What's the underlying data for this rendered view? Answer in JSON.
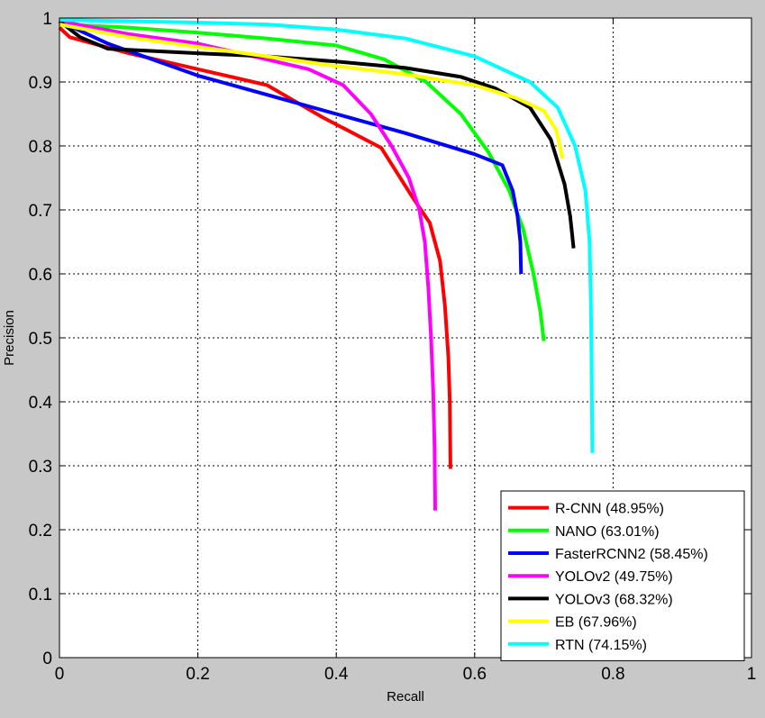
{
  "chart_data": {
    "type": "line",
    "title": "",
    "xlabel": "Recall",
    "ylabel": "Precision",
    "xlim": [
      0,
      1
    ],
    "ylim": [
      0,
      1
    ],
    "x_ticks": [
      "0",
      "0.2",
      "0.4",
      "0.6",
      "0.8",
      "1"
    ],
    "y_ticks": [
      "0",
      "0.1",
      "0.2",
      "0.3",
      "0.4",
      "0.5",
      "0.6",
      "0.7",
      "0.8",
      "0.9",
      "1"
    ],
    "grid": true,
    "legend_position": "bottom-right",
    "series": [
      {
        "name": "R-CNN (48.95%)",
        "color": "#ff0000",
        "points": [
          [
            0.0,
            0.985
          ],
          [
            0.015,
            0.97
          ],
          [
            0.1,
            0.945
          ],
          [
            0.2,
            0.92
          ],
          [
            0.3,
            0.895
          ],
          [
            0.38,
            0.845
          ],
          [
            0.465,
            0.797
          ],
          [
            0.51,
            0.72
          ],
          [
            0.535,
            0.68
          ],
          [
            0.55,
            0.62
          ],
          [
            0.557,
            0.55
          ],
          [
            0.562,
            0.47
          ],
          [
            0.564,
            0.4
          ],
          [
            0.565,
            0.295
          ]
        ]
      },
      {
        "name": "NANO (63.01%)",
        "color": "#00ff00",
        "points": [
          [
            0.0,
            0.99
          ],
          [
            0.1,
            0.985
          ],
          [
            0.2,
            0.977
          ],
          [
            0.3,
            0.968
          ],
          [
            0.4,
            0.957
          ],
          [
            0.47,
            0.935
          ],
          [
            0.53,
            0.9
          ],
          [
            0.58,
            0.85
          ],
          [
            0.62,
            0.79
          ],
          [
            0.65,
            0.73
          ],
          [
            0.67,
            0.67
          ],
          [
            0.685,
            0.6
          ],
          [
            0.695,
            0.54
          ],
          [
            0.7,
            0.495
          ]
        ]
      },
      {
        "name": "FasterRCNN2 (58.45%)",
        "color": "#0000ff",
        "points": [
          [
            0.0,
            0.995
          ],
          [
            0.07,
            0.96
          ],
          [
            0.2,
            0.91
          ],
          [
            0.3,
            0.88
          ],
          [
            0.4,
            0.85
          ],
          [
            0.5,
            0.82
          ],
          [
            0.6,
            0.787
          ],
          [
            0.64,
            0.77
          ],
          [
            0.655,
            0.73
          ],
          [
            0.662,
            0.69
          ],
          [
            0.666,
            0.65
          ],
          [
            0.667,
            0.6
          ]
        ]
      },
      {
        "name": "YOLOv2 (49.75%)",
        "color": "#ff00ff",
        "points": [
          [
            0.0,
            0.995
          ],
          [
            0.1,
            0.975
          ],
          [
            0.2,
            0.96
          ],
          [
            0.3,
            0.935
          ],
          [
            0.36,
            0.92
          ],
          [
            0.41,
            0.895
          ],
          [
            0.45,
            0.85
          ],
          [
            0.48,
            0.8
          ],
          [
            0.505,
            0.75
          ],
          [
            0.52,
            0.7
          ],
          [
            0.528,
            0.65
          ],
          [
            0.533,
            0.58
          ],
          [
            0.537,
            0.5
          ],
          [
            0.54,
            0.42
          ],
          [
            0.542,
            0.33
          ],
          [
            0.543,
            0.23
          ]
        ]
      },
      {
        "name": "YOLOv3 (68.32%)",
        "color": "#000000",
        "points": [
          [
            0.0,
            0.995
          ],
          [
            0.03,
            0.97
          ],
          [
            0.07,
            0.952
          ],
          [
            0.2,
            0.945
          ],
          [
            0.3,
            0.94
          ],
          [
            0.4,
            0.932
          ],
          [
            0.5,
            0.922
          ],
          [
            0.58,
            0.908
          ],
          [
            0.63,
            0.89
          ],
          [
            0.68,
            0.86
          ],
          [
            0.71,
            0.81
          ],
          [
            0.73,
            0.74
          ],
          [
            0.738,
            0.69
          ],
          [
            0.743,
            0.64
          ]
        ]
      },
      {
        "name": "EB (67.96%)",
        "color": "#ffff00",
        "points": [
          [
            0.0,
            0.99
          ],
          [
            0.1,
            0.97
          ],
          [
            0.2,
            0.955
          ],
          [
            0.3,
            0.94
          ],
          [
            0.4,
            0.925
          ],
          [
            0.5,
            0.912
          ],
          [
            0.6,
            0.895
          ],
          [
            0.66,
            0.875
          ],
          [
            0.7,
            0.855
          ],
          [
            0.718,
            0.825
          ],
          [
            0.727,
            0.78
          ]
        ]
      },
      {
        "name": "RTN (74.15%)",
        "color": "#00ffff",
        "points": [
          [
            0.0,
            0.997
          ],
          [
            0.1,
            0.995
          ],
          [
            0.2,
            0.993
          ],
          [
            0.3,
            0.99
          ],
          [
            0.4,
            0.982
          ],
          [
            0.5,
            0.968
          ],
          [
            0.6,
            0.94
          ],
          [
            0.68,
            0.9
          ],
          [
            0.72,
            0.86
          ],
          [
            0.745,
            0.8
          ],
          [
            0.76,
            0.73
          ],
          [
            0.766,
            0.65
          ],
          [
            0.768,
            0.55
          ],
          [
            0.769,
            0.45
          ],
          [
            0.77,
            0.32
          ]
        ]
      }
    ]
  }
}
